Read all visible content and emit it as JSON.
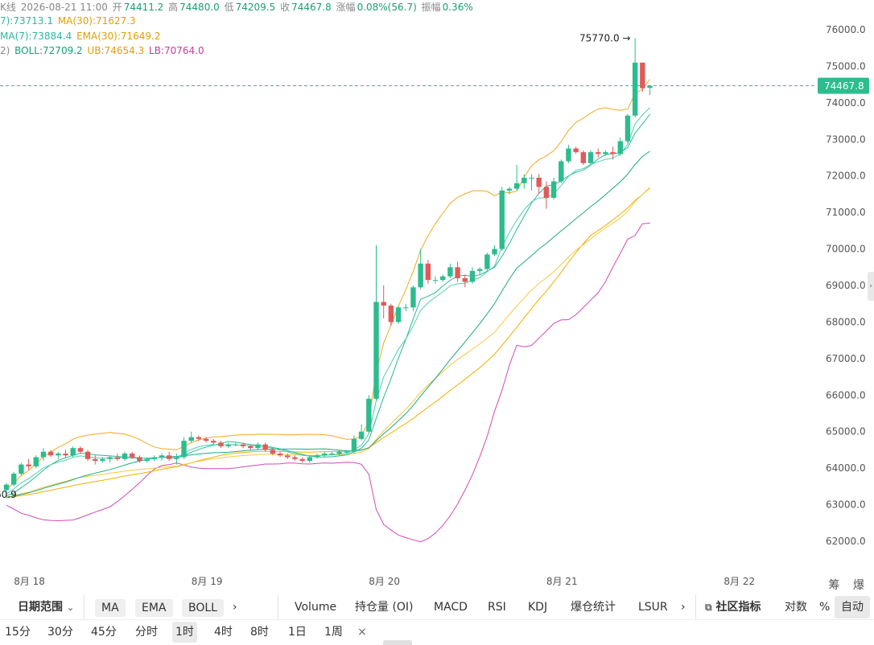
{
  "ohlc_header": {
    "prefix": "K线",
    "datetime": "2026-08-21 11:00",
    "open_label": "开",
    "open": "74411.2",
    "high_label": "高",
    "high": "74480.0",
    "low_label": "低",
    "low": "74209.5",
    "close_label": "收",
    "close": "74467.8",
    "change_label": "涨幅",
    "change": "0.08%(56.7)",
    "amp_label": "振幅",
    "amp": "0.36%"
  },
  "ma_line": {
    "ma7": "7):73713.1",
    "ma30": "MA(30):71627.3"
  },
  "ema_line": {
    "ema7": "MA(7):73884.4",
    "ema30": "EMA(30):71649.2"
  },
  "boll_line": {
    "prefix": "2)",
    "boll": "BOLL:72709.2",
    "ub": "UB:74654.3",
    "lb": "LB:70764.0"
  },
  "chart_data": {
    "type": "candlestick",
    "title": "",
    "ylim": [
      61500,
      76800
    ],
    "y_ticks": [
      62000,
      63000,
      64000,
      65000,
      66000,
      67000,
      68000,
      69000,
      70000,
      71000,
      72000,
      73000,
      74000,
      75000,
      76000
    ],
    "y_tick_labels": [
      "62000.0",
      "63000.0",
      "64000.0",
      "65000.0",
      "66000.0",
      "67000.0",
      "68000.0",
      "69000.0",
      "70000.0",
      "71000.0",
      "72000.0",
      "73000.0",
      "74000.0",
      "75000.0",
      "76000.0"
    ],
    "x_labels": [
      "8月 18",
      "8月 19",
      "8月 20",
      "8月 21",
      "8月 22"
    ],
    "x_label_slots": [
      1,
      25,
      49,
      73,
      97
    ],
    "current_price": 74467.8,
    "current_price_label": "74467.8",
    "max_marker": {
      "slot": 84,
      "value": 75770.0,
      "label": "75770.0 →"
    },
    "min_marker": {
      "slot": 0,
      "label": "60.9"
    },
    "candles": [
      [
        63400,
        63600,
        63250,
        63550
      ],
      [
        63550,
        63900,
        63500,
        63850
      ],
      [
        63850,
        64150,
        63800,
        64100
      ],
      [
        64100,
        64250,
        63950,
        64050
      ],
      [
        64050,
        64350,
        64000,
        64300
      ],
      [
        64300,
        64550,
        64200,
        64450
      ],
      [
        64450,
        64500,
        64300,
        64350
      ],
      [
        64350,
        64450,
        64250,
        64400
      ],
      [
        64400,
        64500,
        64300,
        64350
      ],
      [
        64350,
        64600,
        64300,
        64550
      ],
      [
        64550,
        64600,
        64400,
        64450
      ],
      [
        64450,
        64500,
        64200,
        64250
      ],
      [
        64250,
        64350,
        64100,
        64200
      ],
      [
        64200,
        64300,
        64150,
        64250
      ],
      [
        64250,
        64350,
        64150,
        64300
      ],
      [
        64300,
        64400,
        64200,
        64250
      ],
      [
        64250,
        64450,
        64200,
        64400
      ],
      [
        64400,
        64450,
        64250,
        64300
      ],
      [
        64300,
        64350,
        64150,
        64200
      ],
      [
        64200,
        64300,
        64150,
        64250
      ],
      [
        64250,
        64350,
        64200,
        64300
      ],
      [
        64300,
        64400,
        64200,
        64350
      ],
      [
        64350,
        64450,
        64200,
        64250
      ],
      [
        64250,
        64400,
        64100,
        64300
      ],
      [
        64300,
        64850,
        64250,
        64750
      ],
      [
        64750,
        65000,
        64700,
        64850
      ],
      [
        64850,
        64900,
        64750,
        64800
      ],
      [
        64800,
        64850,
        64700,
        64750
      ],
      [
        64750,
        64800,
        64650,
        64700
      ],
      [
        64700,
        64750,
        64550,
        64600
      ],
      [
        64600,
        64700,
        64550,
        64650
      ],
      [
        64650,
        64700,
        64600,
        64650
      ],
      [
        64650,
        64700,
        64550,
        64600
      ],
      [
        64600,
        64650,
        64500,
        64550
      ],
      [
        64550,
        64700,
        64500,
        64650
      ],
      [
        64650,
        64700,
        64450,
        64500
      ],
      [
        64500,
        64550,
        64350,
        64400
      ],
      [
        64400,
        64450,
        64300,
        64350
      ],
      [
        64350,
        64400,
        64250,
        64300
      ],
      [
        64300,
        64350,
        64200,
        64250
      ],
      [
        64250,
        64300,
        64150,
        64200
      ],
      [
        64200,
        64350,
        64150,
        64300
      ],
      [
        64300,
        64400,
        64250,
        64350
      ],
      [
        64350,
        64450,
        64300,
        64400
      ],
      [
        64400,
        64450,
        64350,
        64400
      ],
      [
        64400,
        64500,
        64350,
        64450
      ],
      [
        64450,
        64500,
        64400,
        64450
      ],
      [
        64450,
        64900,
        64400,
        64800
      ],
      [
        64800,
        65200,
        64750,
        65000
      ],
      [
        65000,
        66000,
        64950,
        65900
      ],
      [
        65900,
        70100,
        65850,
        68550
      ],
      [
        68550,
        69000,
        68100,
        68450
      ],
      [
        68450,
        68500,
        67900,
        68000
      ],
      [
        68000,
        68450,
        67950,
        68400
      ],
      [
        68400,
        68500,
        68300,
        68400
      ],
      [
        68400,
        69000,
        68300,
        68950
      ],
      [
        68950,
        70000,
        68900,
        69600
      ],
      [
        69600,
        69700,
        69050,
        69150
      ],
      [
        69150,
        69250,
        69050,
        69150
      ],
      [
        69150,
        69300,
        69100,
        69250
      ],
      [
        69250,
        69600,
        69200,
        69500
      ],
      [
        69500,
        69650,
        69100,
        69200
      ],
      [
        69200,
        69300,
        68950,
        69100
      ],
      [
        69100,
        69500,
        69050,
        69400
      ],
      [
        69400,
        69500,
        69300,
        69450
      ],
      [
        69450,
        69900,
        69400,
        69850
      ],
      [
        69850,
        70100,
        69800,
        70000
      ],
      [
        70000,
        71700,
        69950,
        71600
      ],
      [
        71600,
        71700,
        71500,
        71650
      ],
      [
        71650,
        72300,
        71600,
        71800
      ],
      [
        71800,
        72050,
        71650,
        71950
      ],
      [
        71950,
        72050,
        71600,
        71950
      ],
      [
        71950,
        72050,
        71500,
        71700
      ],
      [
        71700,
        71850,
        71100,
        71400
      ],
      [
        71400,
        71950,
        71350,
        71850
      ],
      [
        71850,
        72450,
        71800,
        72400
      ],
      [
        72400,
        72850,
        72350,
        72750
      ],
      [
        72750,
        72800,
        72600,
        72650
      ],
      [
        72650,
        72700,
        72300,
        72350
      ],
      [
        72350,
        72700,
        72300,
        72650
      ],
      [
        72650,
        72750,
        72500,
        72600
      ],
      [
        72600,
        72700,
        72550,
        72650
      ],
      [
        72650,
        72800,
        72450,
        72600
      ],
      [
        72600,
        73050,
        72550,
        72950
      ],
      [
        72950,
        73700,
        72900,
        73650
      ],
      [
        73650,
        75770,
        73600,
        75100
      ],
      [
        75100,
        75100,
        74300,
        74400
      ],
      [
        74411.2,
        74480,
        74209.5,
        74467.8
      ]
    ],
    "colors": {
      "up": "#2cbc8e",
      "down": "#e05a5a",
      "ma7": "#2bb89a",
      "ma30": "#f0b000",
      "ema7": "#50d0b0",
      "ema30": "#f5c842",
      "boll_mid": "#20a884",
      "boll_ub": "#f0aa20",
      "boll_lb": "#d14ab8",
      "price_line": "#2cbc8e"
    }
  },
  "toolbar": {
    "date_range": "日期范围",
    "ma": "MA",
    "ema": "EMA",
    "boll": "BOLL",
    "volume": "Volume",
    "oi": "持仓量 (OI)",
    "macd": "MACD",
    "rsi": "RSI",
    "kdj": "KDJ",
    "liq": "爆仓统计",
    "lsur": "LSUR",
    "community": "社区指标",
    "log": "对数",
    "percent": "%",
    "auto": "自动",
    "more_arrow": "›"
  },
  "timeframes": [
    "15分",
    "30分",
    "45分",
    "分时",
    "1时",
    "4时",
    "8时",
    "1日",
    "1周"
  ],
  "active_timeframe": "1时",
  "close_x": "×",
  "corner_icons": "筹 爆"
}
